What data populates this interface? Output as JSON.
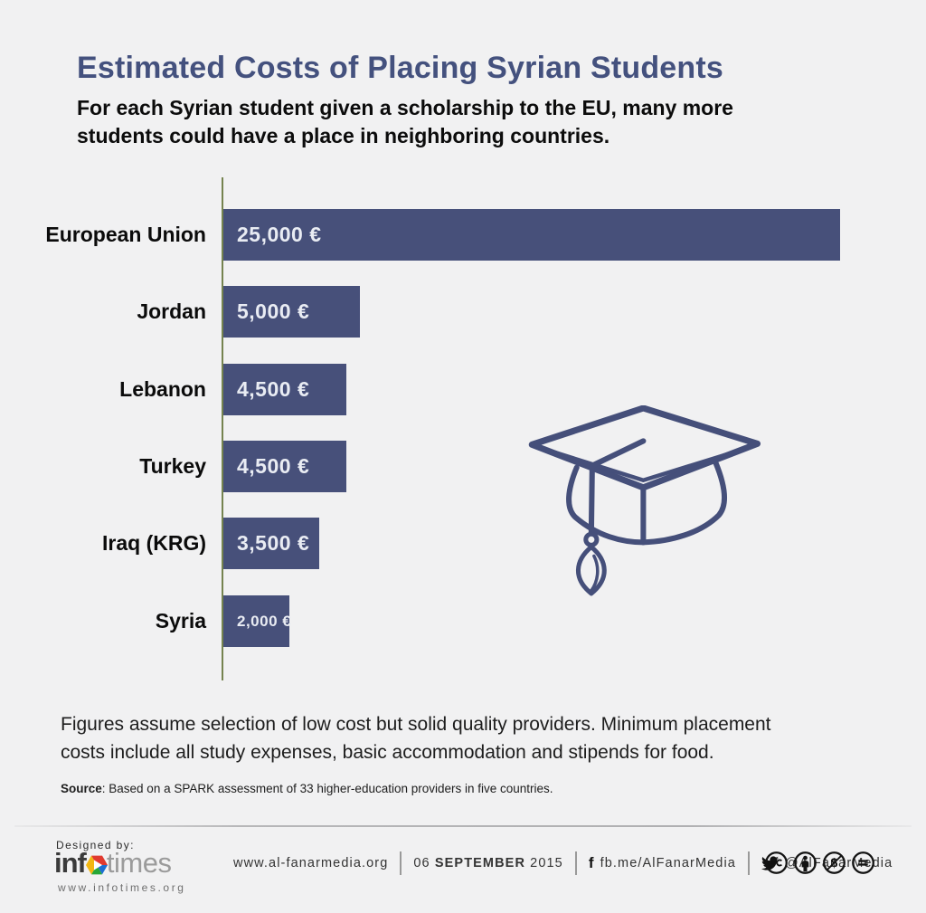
{
  "page": {
    "background": "#f1f1f2"
  },
  "header": {
    "title": "Estimated Costs of Placing Syrian Students",
    "title_color": "#44517e",
    "subtitle_line1": "For each Syrian student given a scholarship to the EU, many more",
    "subtitle_line2": "students could have a place in neighboring countries."
  },
  "chart_data": {
    "type": "bar",
    "orientation": "horizontal",
    "categories": [
      "European Union",
      "Jordan",
      "Lebanon",
      "Turkey",
      "Iraq (KRG)",
      "Syria"
    ],
    "values": [
      25000,
      5000,
      4500,
      4500,
      3500,
      2000
    ],
    "value_labels": [
      "25,000 €",
      "5,000 €",
      "4,500 €",
      "4,500 €",
      "3,500 €",
      "2,000 €"
    ],
    "unit": "EUR",
    "xlim": [
      0,
      25000
    ],
    "grid": false,
    "bar_color": "#47507a",
    "axis_color": "#75834f",
    "value_text_color": "#e9ecf3",
    "bar_pixel_widths": [
      682,
      151,
      136,
      136,
      106,
      73
    ]
  },
  "icons": {
    "graduation_cap_color": "#454f7a"
  },
  "notes": {
    "line1": "Figures assume selection of low cost but solid quality providers. Minimum placement",
    "line2": "costs include all study expenses, basic accommodation and stipends for food.",
    "source_label": "Source",
    "source_rest": ": Based on a SPARK assessment of 33 higher-education providers in five countries."
  },
  "footer": {
    "designed_by": "Designed by:",
    "logo_part1": "inf",
    "logo_part2": "times",
    "logo_url": "www.infotimes.org",
    "site": "www.al-fanarmedia.org",
    "date_day": "06",
    "date_month": "SEPTEMBER",
    "date_year": "2015",
    "facebook": "fb.me/AlFanarMedia",
    "twitter": "@AlFanarMedia",
    "license": "CC BY-NC-ND"
  }
}
